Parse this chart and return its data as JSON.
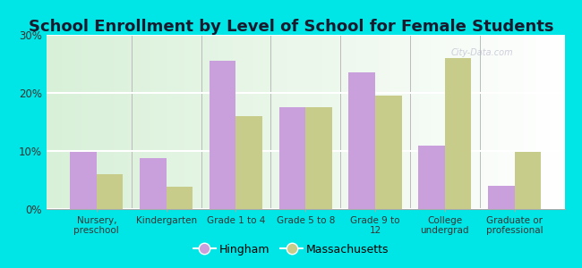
{
  "title": "School Enrollment by Level of School for Female Students",
  "categories": [
    "Nursery,\npreschool",
    "Kindergarten",
    "Grade 1 to 4",
    "Grade 5 to 8",
    "Grade 9 to\n12",
    "College\nundergrad",
    "Graduate or\nprofessional"
  ],
  "hingham": [
    9.8,
    8.7,
    25.5,
    17.5,
    23.5,
    11.0,
    4.0
  ],
  "massachusetts": [
    6.0,
    3.8,
    16.0,
    17.5,
    19.5,
    26.0,
    9.8
  ],
  "hingham_color": "#c9a0dc",
  "massachusetts_color": "#c8cc8a",
  "background_color": "#00e5e5",
  "ylim": [
    0,
    30
  ],
  "yticks": [
    0,
    10,
    20,
    30
  ],
  "ytick_labels": [
    "0%",
    "10%",
    "20%",
    "30%"
  ],
  "legend_labels": [
    "Hingham",
    "Massachusetts"
  ],
  "title_fontsize": 13,
  "bar_width": 0.38
}
